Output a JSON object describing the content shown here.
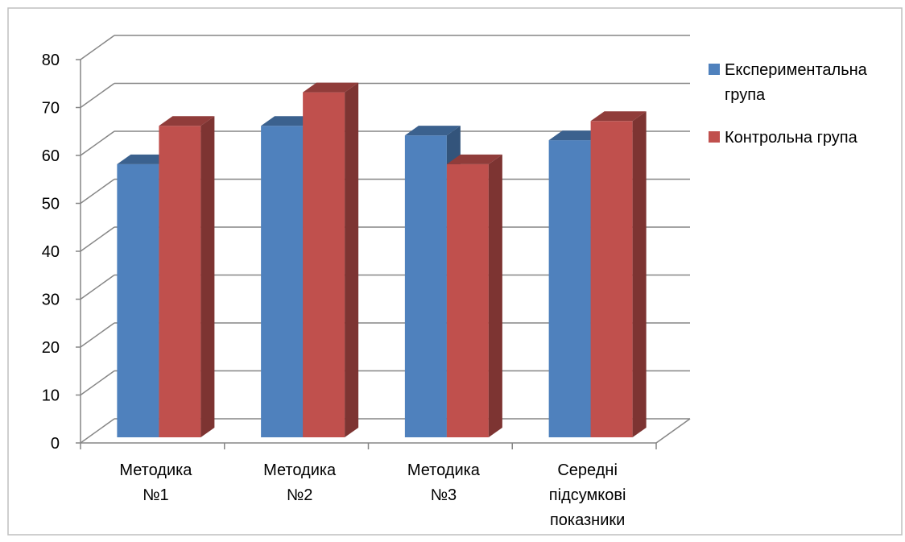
{
  "chart_data": {
    "type": "bar",
    "ylim": [
      0,
      80
    ],
    "yticks": [
      "0",
      "10",
      "20",
      "30",
      "40",
      "50",
      "60",
      "70",
      "80"
    ],
    "grid": true,
    "legend_position": "right",
    "categories": [
      [
        "Методика",
        "№1"
      ],
      [
        "Методика",
        "№2"
      ],
      [
        "Методика",
        "№3"
      ],
      [
        "Середні",
        "підсумкові",
        "показники"
      ]
    ],
    "series": [
      {
        "name_lines": [
          "Експериментальна",
          "група"
        ],
        "color": "#4f81bd",
        "values": [
          57,
          65,
          63,
          62
        ]
      },
      {
        "name_lines": [
          "Контрольна група"
        ],
        "color": "#c0504d",
        "values": [
          65,
          72,
          57,
          66
        ]
      }
    ]
  }
}
